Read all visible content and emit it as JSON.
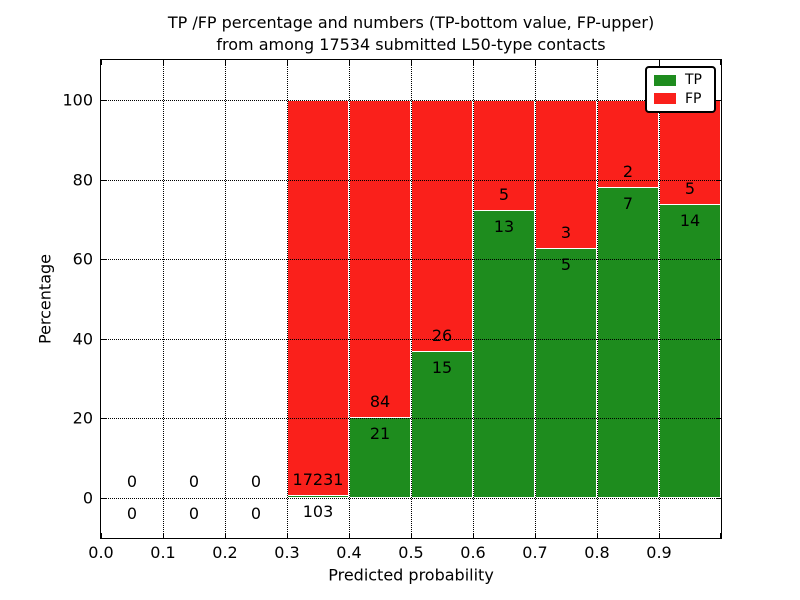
{
  "title": {
    "line1": "TP /FP percentage and numbers (TP-bottom value, FP-upper)",
    "line2": "from among 17534 submitted L50-type contacts"
  },
  "axes": {
    "xlabel": "Predicted probability",
    "ylabel": "Percentage"
  },
  "colors": {
    "tp_green": "#1e8c1e",
    "fp_red": "#fa201b",
    "grid": "#000000",
    "frame": "#000000",
    "background": "#ffffff",
    "bar_edge": "#ffffff"
  },
  "chart_data": {
    "type": "bar",
    "subtype": "stacked-100-percent",
    "title": "TP /FP percentage and numbers (TP-bottom value, FP-upper) from among 17534 submitted L50-type contacts",
    "xlabel": "Predicted probability",
    "ylabel": "Percentage",
    "xlim": [
      0.0,
      1.0
    ],
    "ylim": [
      -10,
      110
    ],
    "grid": "dotted",
    "legend_position": "upper right",
    "bin_width": 0.1,
    "bin_starts": [
      0.0,
      0.1,
      0.2,
      0.3,
      0.4,
      0.5,
      0.6,
      0.7,
      0.8,
      0.9
    ],
    "x_tick_labels": [
      "0.0",
      "0.1",
      "0.2",
      "0.3",
      "0.4",
      "0.5",
      "0.6",
      "0.7",
      "0.8",
      "0.9"
    ],
    "y_tick_values": [
      0,
      20,
      40,
      60,
      80,
      100
    ],
    "y_tick_labels": [
      "0",
      "20",
      "40",
      "60",
      "80",
      "100"
    ],
    "series": [
      {
        "name": "TP",
        "color": "#1e8c1e",
        "stack": "bottom",
        "counts": [
          0,
          0,
          0,
          103,
          21,
          15,
          13,
          5,
          7,
          14
        ]
      },
      {
        "name": "FP",
        "color": "#fa201b",
        "stack": "top",
        "counts": [
          0,
          0,
          0,
          17231,
          84,
          26,
          5,
          3,
          2,
          5
        ]
      }
    ]
  }
}
